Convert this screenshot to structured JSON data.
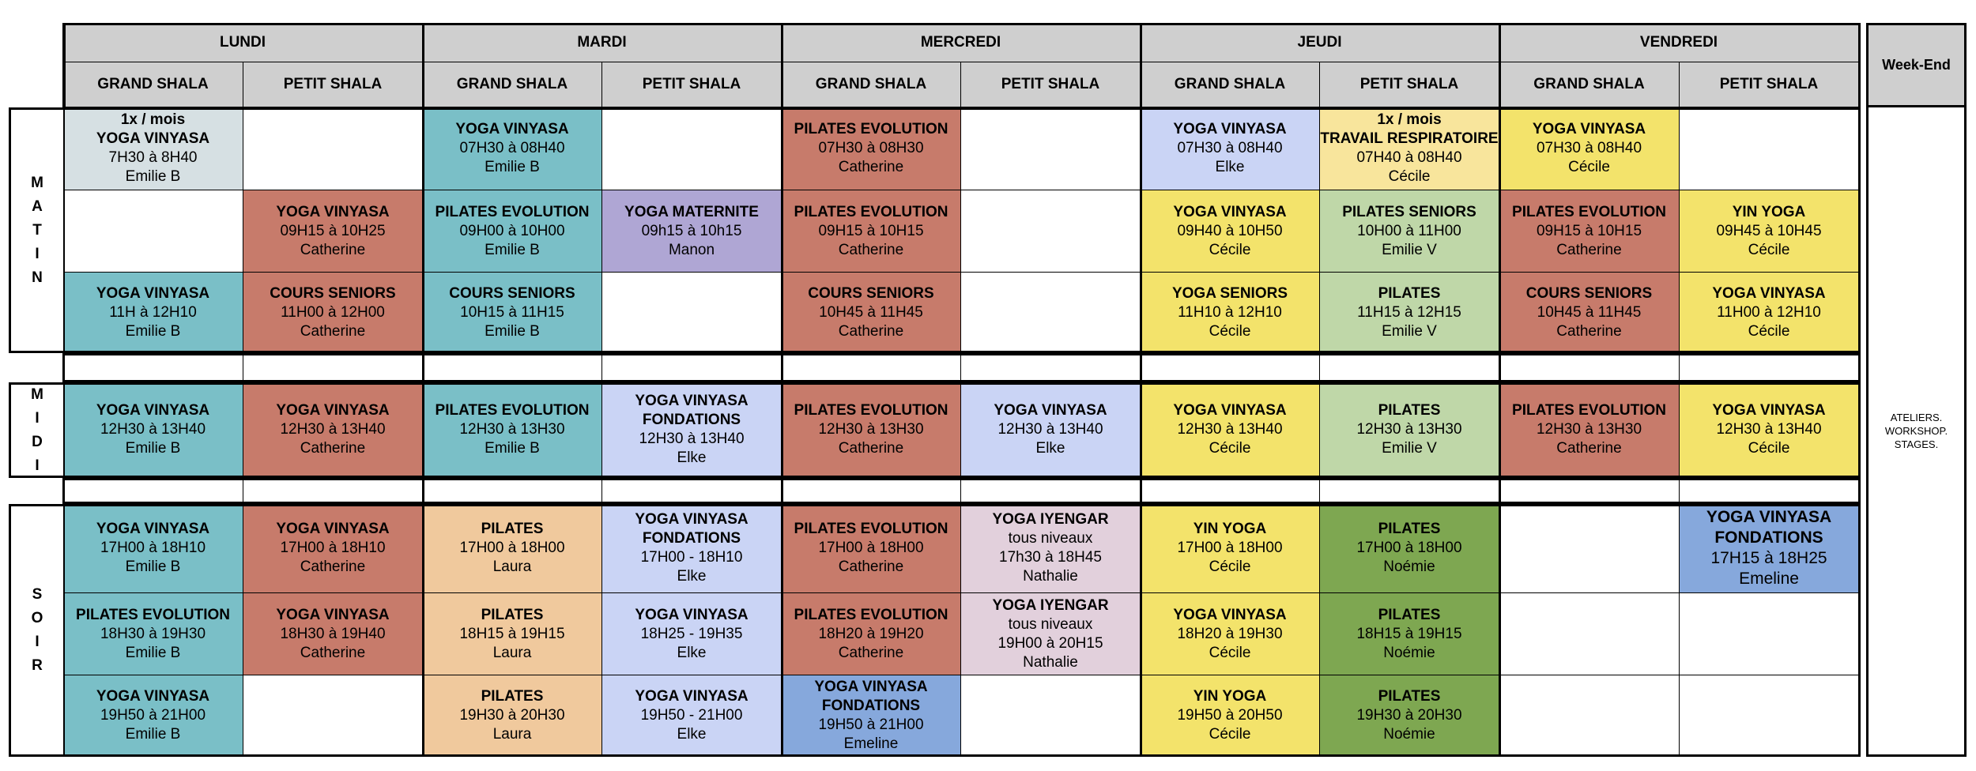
{
  "days": [
    "LUNDI",
    "MARDI",
    "MERCREDI",
    "JEUDI",
    "VENDREDI"
  ],
  "rooms": {
    "grand": "GRAND SHALA",
    "petit": "PETIT SHALA"
  },
  "weekend": {
    "title": "Week-End",
    "body": "ATELIERS.\nWORKSHOP.\nSTAGES."
  },
  "periods": [
    "MATIN",
    "MIDI",
    "SOIR"
  ],
  "colors": {
    "teal": "#7abfc7",
    "terracotta": "#c77b6b",
    "lightgray": "#d6e0e3",
    "lavender": "#cad4f5",
    "lightyellow": "#f8e59c",
    "yellow": "#f3e36b",
    "purple": "#afa6d4",
    "lightgreen": "#bfd7a8",
    "peach": "#f0c99d",
    "blue": "#86a8dc",
    "pink": "#e2d0dc",
    "green": "#7ea751",
    "header": "#cfcfcf",
    "white": "#ffffff"
  },
  "slots": [
    {
      "day": 0,
      "col": 0,
      "row": 0,
      "color": "lightgray",
      "lines": [
        {
          "t": "1x / mois",
          "b": true
        },
        {
          "t": "YOGA VINYASA",
          "b": true
        },
        {
          "t": "7H30 à 8H40"
        },
        {
          "t": "Emilie B"
        }
      ]
    },
    {
      "day": 1,
      "col": 0,
      "row": 0,
      "color": "teal",
      "lines": [
        {
          "t": "YOGA VINYASA",
          "b": true
        },
        {
          "t": "07H30 à 08H40"
        },
        {
          "t": "Emilie B"
        }
      ]
    },
    {
      "day": 2,
      "col": 0,
      "row": 0,
      "color": "terracotta",
      "lines": [
        {
          "t": "PILATES EVOLUTION",
          "b": true
        },
        {
          "t": "07H30 à 08H30"
        },
        {
          "t": "Catherine"
        }
      ]
    },
    {
      "day": 3,
      "col": 0,
      "row": 0,
      "color": "lavender",
      "lines": [
        {
          "t": "YOGA VINYASA",
          "b": true
        },
        {
          "t": "07H30 à 08H40"
        },
        {
          "t": "Elke"
        }
      ]
    },
    {
      "day": 3,
      "col": 1,
      "row": 0,
      "color": "lightyellow",
      "lines": [
        {
          "t": "1x / mois",
          "b": true
        },
        {
          "t": "TRAVAIL RESPIRATOIRE",
          "b": true
        },
        {
          "t": "07H40 à 08H40"
        },
        {
          "t": "Cécile"
        }
      ]
    },
    {
      "day": 4,
      "col": 0,
      "row": 0,
      "color": "yellow",
      "lines": [
        {
          "t": "YOGA VINYASA",
          "b": true
        },
        {
          "t": "07H30 à 08H40"
        },
        {
          "t": "Cécile"
        }
      ]
    },
    {
      "day": 0,
      "col": 1,
      "row": 1,
      "color": "terracotta",
      "lines": [
        {
          "t": "YOGA VINYASA",
          "b": true
        },
        {
          "t": "09H15 à 10H25"
        },
        {
          "t": "Catherine"
        }
      ]
    },
    {
      "day": 1,
      "col": 0,
      "row": 1,
      "color": "teal",
      "lines": [
        {
          "t": "PILATES EVOLUTION",
          "b": true
        },
        {
          "t": "09H00 à 10H00"
        },
        {
          "t": "Emilie B"
        }
      ]
    },
    {
      "day": 1,
      "col": 1,
      "row": 1,
      "color": "purple",
      "lines": [
        {
          "t": "YOGA MATERNITE",
          "b": true
        },
        {
          "t": "09h15 à 10h15"
        },
        {
          "t": "Manon"
        }
      ]
    },
    {
      "day": 2,
      "col": 0,
      "row": 1,
      "color": "terracotta",
      "lines": [
        {
          "t": "PILATES EVOLUTION",
          "b": true
        },
        {
          "t": "09H15 à 10H15"
        },
        {
          "t": "Catherine"
        }
      ]
    },
    {
      "day": 3,
      "col": 0,
      "row": 1,
      "color": "yellow",
      "lines": [
        {
          "t": "YOGA VINYASA",
          "b": true
        },
        {
          "t": "09H40 à 10H50"
        },
        {
          "t": "Cécile"
        }
      ]
    },
    {
      "day": 3,
      "col": 1,
      "row": 1,
      "color": "lightgreen",
      "lines": [
        {
          "t": "PILATES SENIORS",
          "b": true
        },
        {
          "t": "10H00 à 11H00"
        },
        {
          "t": "Emilie V"
        }
      ]
    },
    {
      "day": 4,
      "col": 0,
      "row": 1,
      "color": "terracotta",
      "lines": [
        {
          "t": "PILATES EVOLUTION",
          "b": true
        },
        {
          "t": "09H15 à 10H15"
        },
        {
          "t": "Catherine"
        }
      ]
    },
    {
      "day": 4,
      "col": 1,
      "row": 1,
      "color": "yellow",
      "lines": [
        {
          "t": "YIN YOGA",
          "b": true
        },
        {
          "t": "09H45 à 10H45"
        },
        {
          "t": "Cécile"
        }
      ]
    },
    {
      "day": 0,
      "col": 0,
      "row": 2,
      "color": "teal",
      "lines": [
        {
          "t": "YOGA VINYASA",
          "b": true
        },
        {
          "t": "11H à 12H10"
        },
        {
          "t": "Emilie B"
        }
      ]
    },
    {
      "day": 0,
      "col": 1,
      "row": 2,
      "color": "terracotta",
      "lines": [
        {
          "t": "COURS SENIORS",
          "b": true
        },
        {
          "t": "11H00 à 12H00"
        },
        {
          "t": "Catherine"
        }
      ]
    },
    {
      "day": 1,
      "col": 0,
      "row": 2,
      "color": "teal",
      "lines": [
        {
          "t": "COURS SENIORS",
          "b": true
        },
        {
          "t": "10H15 à 11H15"
        },
        {
          "t": "Emilie B"
        }
      ]
    },
    {
      "day": 2,
      "col": 0,
      "row": 2,
      "color": "terracotta",
      "lines": [
        {
          "t": "COURS SENIORS",
          "b": true
        },
        {
          "t": "10H45 à 11H45"
        },
        {
          "t": "Catherine"
        }
      ]
    },
    {
      "day": 3,
      "col": 0,
      "row": 2,
      "color": "yellow",
      "lines": [
        {
          "t": "YOGA SENIORS",
          "b": true
        },
        {
          "t": "11H10 à 12H10"
        },
        {
          "t": "Cécile"
        }
      ]
    },
    {
      "day": 3,
      "col": 1,
      "row": 2,
      "color": "lightgreen",
      "lines": [
        {
          "t": "PILATES",
          "b": true
        },
        {
          "t": "11H15 à 12H15"
        },
        {
          "t": "Emilie V"
        }
      ]
    },
    {
      "day": 4,
      "col": 0,
      "row": 2,
      "color": "terracotta",
      "lines": [
        {
          "t": "COURS SENIORS",
          "b": true
        },
        {
          "t": "10H45 à 11H45"
        },
        {
          "t": "Catherine"
        }
      ]
    },
    {
      "day": 4,
      "col": 1,
      "row": 2,
      "color": "yellow",
      "lines": [
        {
          "t": "YOGA VINYASA",
          "b": true
        },
        {
          "t": "11H00 à 12H10"
        },
        {
          "t": "Cécile"
        }
      ]
    },
    {
      "day": 0,
      "col": 0,
      "row": 3,
      "color": "teal",
      "lines": [
        {
          "t": "YOGA VINYASA",
          "b": true
        },
        {
          "t": "12H30 à 13H40"
        },
        {
          "t": "Emilie B"
        }
      ]
    },
    {
      "day": 0,
      "col": 1,
      "row": 3,
      "color": "terracotta",
      "lines": [
        {
          "t": "YOGA VINYASA",
          "b": true
        },
        {
          "t": "12H30 à 13H40"
        },
        {
          "t": "Catherine"
        }
      ]
    },
    {
      "day": 1,
      "col": 0,
      "row": 3,
      "color": "teal",
      "lines": [
        {
          "t": "PILATES EVOLUTION",
          "b": true
        },
        {
          "t": "12H30 à 13H30"
        },
        {
          "t": "Emilie B"
        }
      ]
    },
    {
      "day": 1,
      "col": 1,
      "row": 3,
      "color": "lavender",
      "lines": [
        {
          "t": "YOGA VINYASA",
          "b": true
        },
        {
          "t": "FONDATIONS",
          "b": true
        },
        {
          "t": "12H30 à 13H40"
        },
        {
          "t": "Elke"
        }
      ]
    },
    {
      "day": 2,
      "col": 0,
      "row": 3,
      "color": "terracotta",
      "lines": [
        {
          "t": "PILATES EVOLUTION",
          "b": true
        },
        {
          "t": "12H30 à 13H30"
        },
        {
          "t": "Catherine"
        }
      ]
    },
    {
      "day": 2,
      "col": 1,
      "row": 3,
      "color": "lavender",
      "lines": [
        {
          "t": "YOGA VINYASA",
          "b": true
        },
        {
          "t": "12H30 à 13H40"
        },
        {
          "t": "Elke"
        }
      ]
    },
    {
      "day": 3,
      "col": 0,
      "row": 3,
      "color": "yellow",
      "lines": [
        {
          "t": "YOGA VINYASA",
          "b": true
        },
        {
          "t": "12H30 à 13H40"
        },
        {
          "t": "Cécile"
        }
      ]
    },
    {
      "day": 3,
      "col": 1,
      "row": 3,
      "color": "lightgreen",
      "lines": [
        {
          "t": "PILATES",
          "b": true
        },
        {
          "t": "12H30 à 13H30"
        },
        {
          "t": "Emilie V"
        }
      ]
    },
    {
      "day": 4,
      "col": 0,
      "row": 3,
      "color": "terracotta",
      "lines": [
        {
          "t": "PILATES EVOLUTION",
          "b": true
        },
        {
          "t": "12H30 à 13H30"
        },
        {
          "t": "Catherine"
        }
      ]
    },
    {
      "day": 4,
      "col": 1,
      "row": 3,
      "color": "yellow",
      "lines": [
        {
          "t": "YOGA VINYASA",
          "b": true
        },
        {
          "t": "12H30 à 13H40"
        },
        {
          "t": "Cécile"
        }
      ]
    },
    {
      "day": 0,
      "col": 0,
      "row": 4,
      "color": "teal",
      "lines": [
        {
          "t": "YOGA VINYASA",
          "b": true
        },
        {
          "t": "17H00 à 18H10"
        },
        {
          "t": "Emilie B"
        }
      ]
    },
    {
      "day": 0,
      "col": 1,
      "row": 4,
      "color": "terracotta",
      "lines": [
        {
          "t": "YOGA VINYASA",
          "b": true
        },
        {
          "t": "17H00 à 18H10"
        },
        {
          "t": "Catherine"
        }
      ]
    },
    {
      "day": 1,
      "col": 0,
      "row": 4,
      "color": "peach",
      "lines": [
        {
          "t": "PILATES",
          "b": true
        },
        {
          "t": "17H00 à 18H00"
        },
        {
          "t": "Laura"
        }
      ]
    },
    {
      "day": 1,
      "col": 1,
      "row": 4,
      "color": "lavender",
      "lines": [
        {
          "t": "YOGA VINYASA",
          "b": true
        },
        {
          "t": "FONDATIONS",
          "b": true
        },
        {
          "t": "17H00 - 18H10"
        },
        {
          "t": "Elke"
        }
      ]
    },
    {
      "day": 2,
      "col": 0,
      "row": 4,
      "color": "terracotta",
      "lines": [
        {
          "t": "PILATES EVOLUTION",
          "b": true
        },
        {
          "t": "17H00 à 18H00"
        },
        {
          "t": "Catherine"
        }
      ]
    },
    {
      "day": 2,
      "col": 1,
      "row": 4,
      "color": "pink",
      "lines": [
        {
          "t": "YOGA IYENGAR",
          "b": true
        },
        {
          "t": "tous niveaux"
        },
        {
          "t": "17h30 à 18H45"
        },
        {
          "t": "Nathalie"
        }
      ]
    },
    {
      "day": 3,
      "col": 0,
      "row": 4,
      "color": "yellow",
      "lines": [
        {
          "t": "YIN YOGA",
          "b": true
        },
        {
          "t": "17H00 à 18H00"
        },
        {
          "t": "Cécile"
        }
      ]
    },
    {
      "day": 3,
      "col": 1,
      "row": 4,
      "color": "green",
      "lines": [
        {
          "t": "PILATES",
          "b": true
        },
        {
          "t": "17H00 à 18H00"
        },
        {
          "t": "Noémie"
        }
      ]
    },
    {
      "day": 4,
      "col": 1,
      "row": 4,
      "color": "blue",
      "big": true,
      "lines": [
        {
          "t": "YOGA VINYASA",
          "b": true
        },
        {
          "t": "FONDATIONS",
          "b": true
        },
        {
          "t": "17H15 à 18H25"
        },
        {
          "t": "Emeline"
        }
      ]
    },
    {
      "day": 0,
      "col": 0,
      "row": 5,
      "color": "teal",
      "lines": [
        {
          "t": "PILATES EVOLUTION",
          "b": true
        },
        {
          "t": "18H30 à 19H30"
        },
        {
          "t": "Emilie B"
        }
      ]
    },
    {
      "day": 0,
      "col": 1,
      "row": 5,
      "color": "terracotta",
      "lines": [
        {
          "t": "YOGA VINYASA",
          "b": true
        },
        {
          "t": "18H30 à 19H40"
        },
        {
          "t": "Catherine"
        }
      ]
    },
    {
      "day": 1,
      "col": 0,
      "row": 5,
      "color": "peach",
      "lines": [
        {
          "t": "PILATES",
          "b": true
        },
        {
          "t": "18H15 à 19H15"
        },
        {
          "t": "Laura"
        }
      ]
    },
    {
      "day": 1,
      "col": 1,
      "row": 5,
      "color": "lavender",
      "lines": [
        {
          "t": "YOGA VINYASA",
          "b": true
        },
        {
          "t": "18H25 - 19H35"
        },
        {
          "t": "Elke"
        }
      ]
    },
    {
      "day": 2,
      "col": 0,
      "row": 5,
      "color": "terracotta",
      "lines": [
        {
          "t": "PILATES EVOLUTION",
          "b": true
        },
        {
          "t": "18H20 à 19H20"
        },
        {
          "t": "Catherine"
        }
      ]
    },
    {
      "day": 2,
      "col": 1,
      "row": 5,
      "color": "pink",
      "lines": [
        {
          "t": "YOGA IYENGAR",
          "b": true
        },
        {
          "t": "tous niveaux"
        },
        {
          "t": "19H00 à 20H15"
        },
        {
          "t": "Nathalie"
        }
      ]
    },
    {
      "day": 3,
      "col": 0,
      "row": 5,
      "color": "yellow",
      "lines": [
        {
          "t": "YOGA VINYASA",
          "b": true
        },
        {
          "t": "18H20 à 19H30"
        },
        {
          "t": "Cécile"
        }
      ]
    },
    {
      "day": 3,
      "col": 1,
      "row": 5,
      "color": "green",
      "lines": [
        {
          "t": "PILATES",
          "b": true
        },
        {
          "t": "18H15 à 19H15"
        },
        {
          "t": "Noémie"
        }
      ]
    },
    {
      "day": 0,
      "col": 0,
      "row": 6,
      "color": "teal",
      "lines": [
        {
          "t": "YOGA VINYASA",
          "b": true
        },
        {
          "t": "19H50 à 21H00"
        },
        {
          "t": "Emilie B"
        }
      ]
    },
    {
      "day": 1,
      "col": 0,
      "row": 6,
      "color": "peach",
      "lines": [
        {
          "t": "PILATES",
          "b": true
        },
        {
          "t": "19H30 à 20H30"
        },
        {
          "t": "Laura"
        }
      ]
    },
    {
      "day": 1,
      "col": 1,
      "row": 6,
      "color": "lavender",
      "lines": [
        {
          "t": "YOGA VINYASA",
          "b": true
        },
        {
          "t": "19H50 - 21H00"
        },
        {
          "t": "Elke"
        }
      ]
    },
    {
      "day": 2,
      "col": 0,
      "row": 6,
      "color": "blue",
      "lines": [
        {
          "t": "YOGA VINYASA",
          "b": true
        },
        {
          "t": "FONDATIONS",
          "b": true
        },
        {
          "t": "19H50 à 21H00"
        },
        {
          "t": "Emeline"
        }
      ]
    },
    {
      "day": 3,
      "col": 0,
      "row": 6,
      "color": "yellow",
      "lines": [
        {
          "t": "YIN YOGA",
          "b": true
        },
        {
          "t": "19H50 à 20H50"
        },
        {
          "t": "Cécile"
        }
      ]
    },
    {
      "day": 3,
      "col": 1,
      "row": 6,
      "color": "green",
      "lines": [
        {
          "t": "PILATES",
          "b": true
        },
        {
          "t": "19H30 à 20H30"
        },
        {
          "t": "Noémie"
        }
      ]
    }
  ]
}
